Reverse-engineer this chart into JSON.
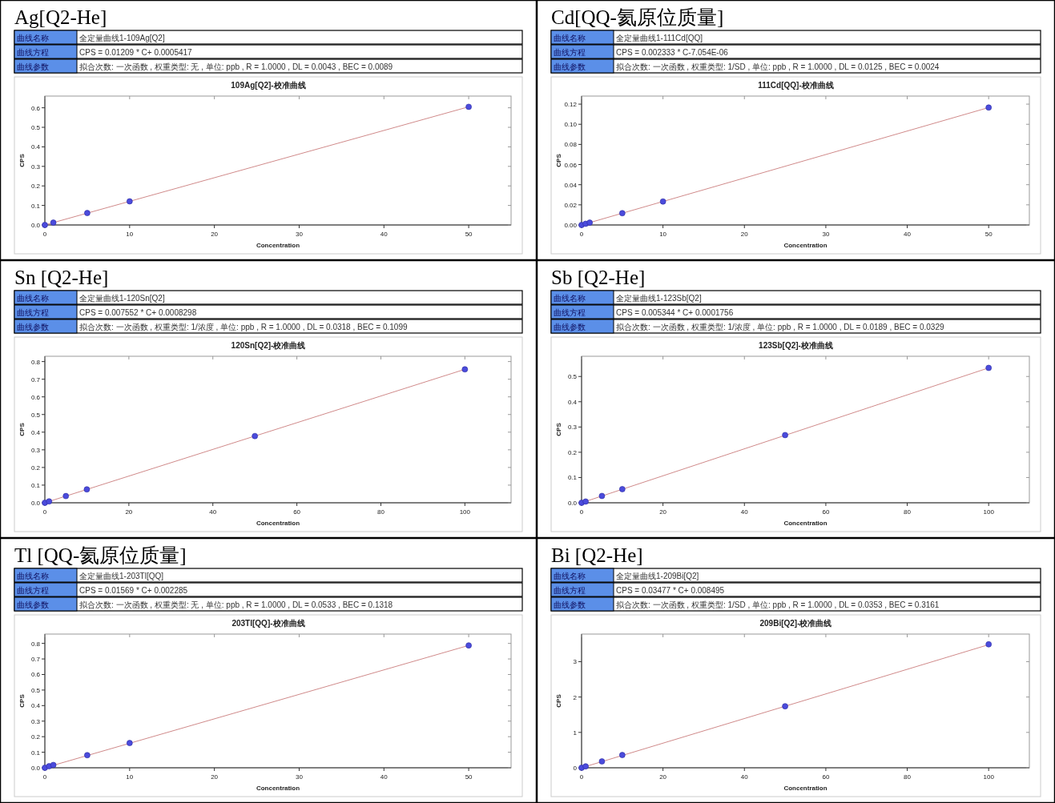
{
  "chart_data": [
    {
      "type": "scatter",
      "title": "Ag[Q2-He]",
      "subtitle": "109Ag[Q2]-校准曲线",
      "xlabel": "Concentration",
      "ylabel": "CPS",
      "annotations": [
        "曲线名称",
        "全定量曲线1-109Ag[Q2]",
        "曲线方程",
        "CPS = 0.01209 * C+ 0.0005417",
        "曲线参数",
        "拟合次数: 一次函数 , 权重类型: 无 , 单位: ppb , R = 1.0000 , DL = 0.0043 , BEC = 0.0089"
      ],
      "xlim": [
        0,
        55
      ],
      "ylim": [
        0,
        0.66
      ],
      "xticks": [
        0,
        10,
        20,
        30,
        40,
        50
      ],
      "yticks": [
        {
          "value": 0,
          "label": "0.0"
        },
        {
          "value": 0.1,
          "label": "0.1"
        },
        {
          "value": 0.2,
          "label": "0.2"
        },
        {
          "value": 0.3,
          "label": "0.3"
        },
        {
          "value": 0.4,
          "label": "0.4"
        },
        {
          "value": 0.5,
          "label": "0.5"
        },
        {
          "value": 0.6,
          "label": "0.6"
        }
      ],
      "series": [
        {
          "type": "line",
          "line_style": "solid",
          "color": "#d08a8a",
          "x": [
            0,
            50
          ],
          "values": [
            0,
            0.605
          ]
        },
        {
          "marker": "circle",
          "color": "#4b4bdc",
          "x": [
            0,
            1,
            5,
            10,
            50
          ],
          "values": [
            0,
            0.012,
            0.061,
            0.121,
            0.605
          ]
        }
      ]
    },
    {
      "type": "scatter",
      "title": "Cd[QQ-氦原位质量]",
      "subtitle": "111Cd[QQ]-校准曲线",
      "xlabel": "Concentration",
      "ylabel": "CPS",
      "annotations": [
        "曲线名称",
        "全定量曲线1-111Cd[QQ]",
        "曲线方程",
        "CPS = 0.002333 * C-7.054E-06",
        "曲线参数",
        "拟合次数: 一次函数 , 权重类型: 1/SD , 单位: ppb , R = 1.0000 , DL = 0.0125 , BEC = 0.0024"
      ],
      "xlim": [
        0,
        55
      ],
      "ylim": [
        0,
        0.128
      ],
      "xticks": [
        0,
        10,
        20,
        30,
        40,
        50
      ],
      "yticks": [
        {
          "value": 0,
          "label": "0.00"
        },
        {
          "value": 0.02,
          "label": "0.02"
        },
        {
          "value": 0.04,
          "label": "0.04"
        },
        {
          "value": 0.06,
          "label": "0.06"
        },
        {
          "value": 0.08,
          "label": "0.08"
        },
        {
          "value": 0.1,
          "label": "0.10"
        },
        {
          "value": 0.12,
          "label": "0.12"
        }
      ],
      "series": [
        {
          "type": "line",
          "line_style": "solid",
          "color": "#d08a8a",
          "x": [
            0,
            50
          ],
          "values": [
            0,
            0.1166
          ]
        },
        {
          "marker": "circle",
          "color": "#4b4bdc",
          "x": [
            0,
            0.5,
            1,
            5,
            10,
            50
          ],
          "values": [
            0,
            0.0012,
            0.0023,
            0.0117,
            0.0233,
            0.1166
          ]
        }
      ]
    },
    {
      "type": "scatter",
      "title": "Sn [Q2-He]",
      "subtitle": "120Sn[Q2]-校准曲线",
      "xlabel": "Concentration",
      "ylabel": "CPS",
      "annotations": [
        "曲线名称",
        "全定量曲线1-120Sn[Q2]",
        "曲线方程",
        "CPS = 0.007552 * C+ 0.0008298",
        "曲线参数",
        "拟合次数: 一次函数 , 权重类型: 1/浓度 , 单位: ppb , R = 1.0000 , DL = 0.0318 , BEC = 0.1099"
      ],
      "xlim": [
        0,
        111
      ],
      "ylim": [
        0,
        0.83
      ],
      "xticks": [
        0,
        20,
        40,
        60,
        80,
        100
      ],
      "yticks": [
        {
          "value": 0,
          "label": "0.0"
        },
        {
          "value": 0.1,
          "label": "0.1"
        },
        {
          "value": 0.2,
          "label": "0.2"
        },
        {
          "value": 0.3,
          "label": "0.3"
        },
        {
          "value": 0.4,
          "label": "0.4"
        },
        {
          "value": 0.5,
          "label": "0.5"
        },
        {
          "value": 0.6,
          "label": "0.6"
        },
        {
          "value": 0.7,
          "label": "0.7"
        },
        {
          "value": 0.8,
          "label": "0.8"
        }
      ],
      "series": [
        {
          "type": "line",
          "line_style": "solid",
          "color": "#d08a8a",
          "x": [
            0,
            100
          ],
          "values": [
            0,
            0.756
          ]
        },
        {
          "marker": "circle",
          "color": "#4b4bdc",
          "x": [
            0,
            1,
            5,
            10,
            50,
            100
          ],
          "values": [
            0,
            0.008,
            0.038,
            0.076,
            0.378,
            0.756
          ]
        }
      ]
    },
    {
      "type": "scatter",
      "title": "Sb [Q2-He]",
      "subtitle": "123Sb[Q2]-校准曲线",
      "xlabel": "Concentration",
      "ylabel": "CPS",
      "annotations": [
        "曲线名称",
        "全定量曲线1-123Sb[Q2]",
        "曲线方程",
        "CPS = 0.005344 * C+ 0.0001756",
        "曲线参数",
        "拟合次数: 一次函数 , 权重类型: 1/浓度 , 单位: ppb , R = 1.0000 , DL = 0.0189 , BEC = 0.0329"
      ],
      "xlim": [
        0,
        110
      ],
      "ylim": [
        0,
        0.58
      ],
      "xticks": [
        0,
        20,
        40,
        60,
        80,
        100
      ],
      "yticks": [
        {
          "value": 0,
          "label": "0.0"
        },
        {
          "value": 0.1,
          "label": "0.1"
        },
        {
          "value": 0.2,
          "label": "0.2"
        },
        {
          "value": 0.3,
          "label": "0.3"
        },
        {
          "value": 0.4,
          "label": "0.4"
        },
        {
          "value": 0.5,
          "label": "0.5"
        }
      ],
      "series": [
        {
          "type": "line",
          "line_style": "solid",
          "color": "#d08a8a",
          "x": [
            0,
            100
          ],
          "values": [
            0,
            0.534
          ]
        },
        {
          "marker": "circle",
          "color": "#4b4bdc",
          "x": [
            0,
            1,
            5,
            10,
            50,
            100
          ],
          "values": [
            0,
            0.005,
            0.027,
            0.054,
            0.268,
            0.534
          ]
        }
      ]
    },
    {
      "type": "scatter",
      "title": "Tl [QQ-氦原位质量]",
      "subtitle": "203Tl[QQ]-校准曲线",
      "xlabel": "Concentration",
      "ylabel": "CPS",
      "annotations": [
        "曲线名称",
        "全定量曲线1-203Tl[QQ]",
        "曲线方程",
        "CPS = 0.01569 * C+ 0.002285",
        "曲线参数",
        "拟合次数: 一次函数 , 权重类型: 无 , 单位: ppb , R = 1.0000 , DL = 0.0533 , BEC = 0.1318"
      ],
      "xlim": [
        0,
        55
      ],
      "ylim": [
        0,
        0.86
      ],
      "xticks": [
        0,
        10,
        20,
        30,
        40,
        50
      ],
      "yticks": [
        {
          "value": 0,
          "label": "0.0"
        },
        {
          "value": 0.1,
          "label": "0.1"
        },
        {
          "value": 0.2,
          "label": "0.2"
        },
        {
          "value": 0.3,
          "label": "0.3"
        },
        {
          "value": 0.4,
          "label": "0.4"
        },
        {
          "value": 0.5,
          "label": "0.5"
        },
        {
          "value": 0.6,
          "label": "0.6"
        },
        {
          "value": 0.7,
          "label": "0.7"
        },
        {
          "value": 0.8,
          "label": "0.8"
        }
      ],
      "series": [
        {
          "type": "line",
          "line_style": "solid",
          "color": "#d08a8a",
          "x": [
            0,
            50
          ],
          "values": [
            0,
            0.787
          ]
        },
        {
          "marker": "circle",
          "color": "#4b4bdc",
          "x": [
            0,
            0.5,
            1,
            5,
            10,
            50
          ],
          "values": [
            0,
            0.01,
            0.018,
            0.081,
            0.159,
            0.787
          ]
        }
      ]
    },
    {
      "type": "scatter",
      "title": "Bi [Q2-He]",
      "subtitle": "209Bi[Q2]-校准曲线",
      "xlabel": "Concentration",
      "ylabel": "CPS",
      "annotations": [
        "曲线名称",
        "全定量曲线1-209Bi[Q2]",
        "曲线方程",
        "CPS = 0.03477 * C+ 0.008495",
        "曲线参数",
        "拟合次数: 一次函数 , 权重类型: 1/SD , 单位: ppb , R = 1.0000 , DL = 0.0353 , BEC = 0.3161"
      ],
      "xlim": [
        0,
        110
      ],
      "ylim": [
        0,
        3.78
      ],
      "xticks": [
        0,
        20,
        40,
        60,
        80,
        100
      ],
      "yticks": [
        0,
        1,
        2,
        3
      ],
      "series": [
        {
          "type": "line",
          "line_style": "solid",
          "color": "#d08a8a",
          "x": [
            0,
            100
          ],
          "values": [
            0,
            3.48
          ]
        },
        {
          "marker": "circle",
          "color": "#4b4bdc",
          "x": [
            0,
            1,
            5,
            10,
            50,
            100
          ],
          "values": [
            0,
            0.04,
            0.18,
            0.36,
            1.74,
            3.49
          ]
        }
      ]
    }
  ]
}
